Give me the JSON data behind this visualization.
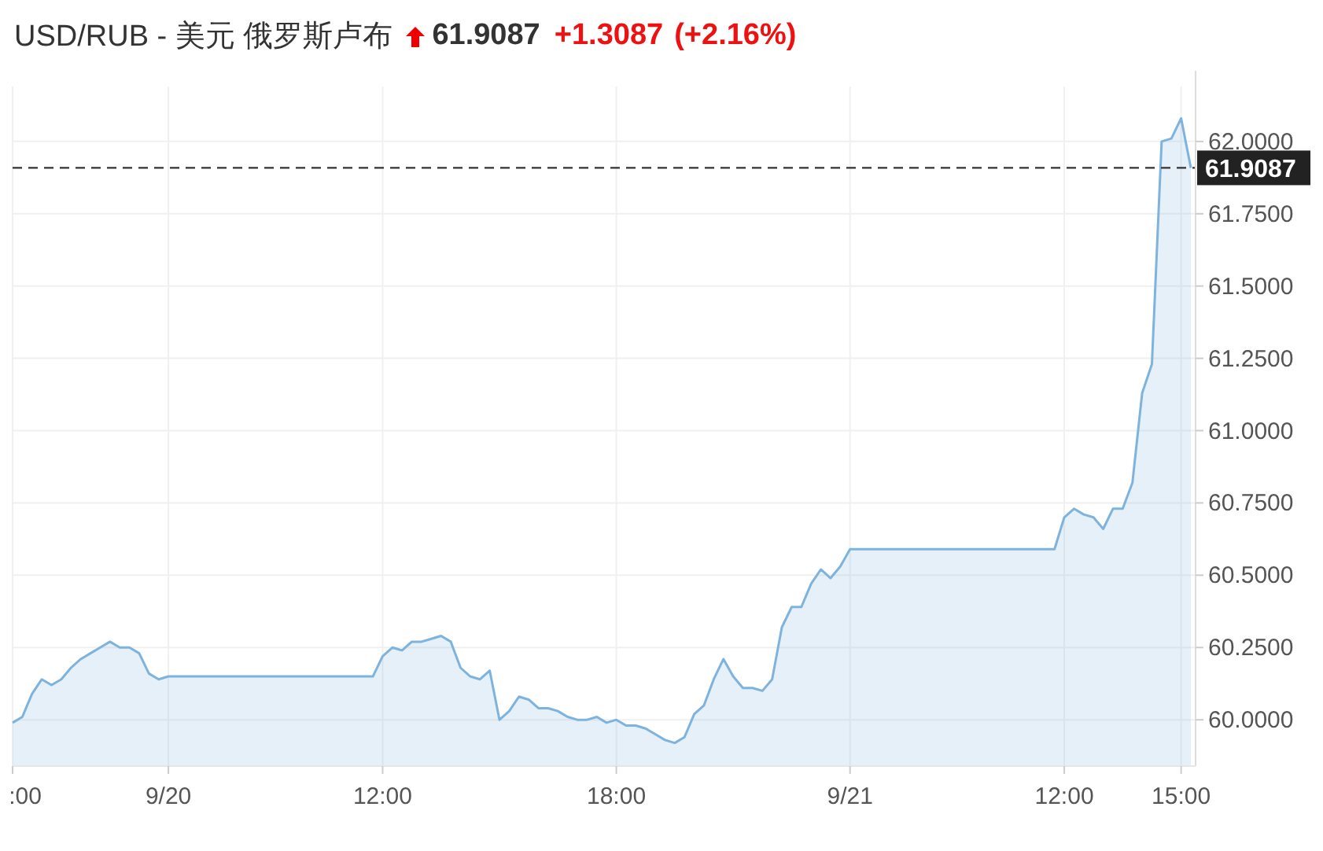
{
  "chart_data": {
    "type": "area",
    "title": "USD/RUB - 美元 俄罗斯卢布",
    "annotations": [
      "61.9087",
      "+1.3087",
      "(+2.16%)"
    ],
    "categories": [
      ":00",
      null,
      null,
      null,
      null,
      null,
      null,
      null,
      null,
      null,
      null,
      null,
      null,
      null,
      null,
      null,
      "9/20",
      null,
      null,
      null,
      null,
      null,
      null,
      null,
      null,
      null,
      null,
      null,
      null,
      null,
      null,
      null,
      null,
      null,
      null,
      null,
      null,
      null,
      "12:00",
      null,
      null,
      null,
      null,
      null,
      null,
      null,
      null,
      null,
      null,
      null,
      null,
      null,
      null,
      null,
      null,
      null,
      null,
      null,
      null,
      null,
      null,
      null,
      "18:00",
      null,
      null,
      null,
      null,
      null,
      null,
      null,
      null,
      null,
      null,
      null,
      null,
      null,
      null,
      null,
      null,
      null,
      null,
      null,
      null,
      null,
      null,
      null,
      "9/21",
      null,
      null,
      null,
      null,
      null,
      null,
      null,
      null,
      null,
      null,
      null,
      null,
      null,
      null,
      null,
      null,
      null,
      null,
      null,
      null,
      null,
      "12:00",
      null,
      null,
      null,
      null,
      null,
      null,
      null,
      null,
      null,
      null,
      null,
      "15:00",
      null
    ],
    "series": [
      {
        "color": "#7eb3dd",
        "values": [
          59.99,
          60.01,
          60.09,
          60.14,
          60.12,
          60.14,
          60.18,
          60.21,
          60.23,
          60.25,
          60.27,
          60.25,
          60.25,
          60.23,
          60.16,
          60.14,
          60.15,
          60.15,
          60.15,
          60.15,
          60.15,
          60.15,
          60.15,
          60.15,
          60.15,
          60.15,
          60.15,
          60.15,
          60.15,
          60.15,
          60.15,
          60.15,
          60.15,
          60.15,
          60.15,
          60.15,
          60.15,
          60.15,
          60.22,
          60.25,
          60.24,
          60.27,
          60.27,
          60.28,
          60.29,
          60.27,
          60.18,
          60.15,
          60.14,
          60.17,
          60.0,
          60.03,
          60.08,
          60.07,
          60.04,
          60.04,
          60.03,
          60.01,
          60.0,
          60.0,
          60.01,
          59.99,
          60.0,
          59.98,
          59.98,
          59.97,
          59.95,
          59.93,
          59.92,
          59.94,
          60.02,
          60.05,
          60.14,
          60.21,
          60.15,
          60.11,
          60.11,
          60.1,
          60.14,
          60.32,
          60.39,
          60.39,
          60.47,
          60.52,
          60.49,
          60.53,
          60.59,
          60.59,
          60.59,
          60.59,
          60.59,
          60.59,
          60.59,
          60.59,
          60.59,
          60.59,
          60.59,
          60.59,
          60.59,
          60.59,
          60.59,
          60.59,
          60.59,
          60.59,
          60.59,
          60.59,
          60.59,
          60.59,
          60.7,
          60.73,
          60.71,
          60.7,
          60.66,
          60.73,
          60.73,
          60.82,
          61.13,
          61.23,
          62.0,
          62.01,
          62.08,
          61.9087
        ]
      }
    ],
    "ylim": [
      59.84,
      62.19
    ],
    "yticks": [
      {
        "value": 60,
        "label": "60.0000"
      },
      {
        "value": 60.25,
        "label": "60.2500"
      },
      {
        "value": 60.5,
        "label": "60.5000"
      },
      {
        "value": 60.75,
        "label": "60.7500"
      },
      {
        "value": 61,
        "label": "61.0000"
      },
      {
        "value": 61.25,
        "label": "61.2500"
      },
      {
        "value": 61.5,
        "label": "61.5000"
      },
      {
        "value": 61.75,
        "label": "61.7500"
      },
      {
        "value": 62,
        "label": "62.0000"
      }
    ],
    "ref_lines": [
      {
        "axis": "y",
        "value": 61.9087,
        "label": "61.9087",
        "color": "#333333",
        "line_style": "dashed"
      }
    ],
    "grid": true
  }
}
